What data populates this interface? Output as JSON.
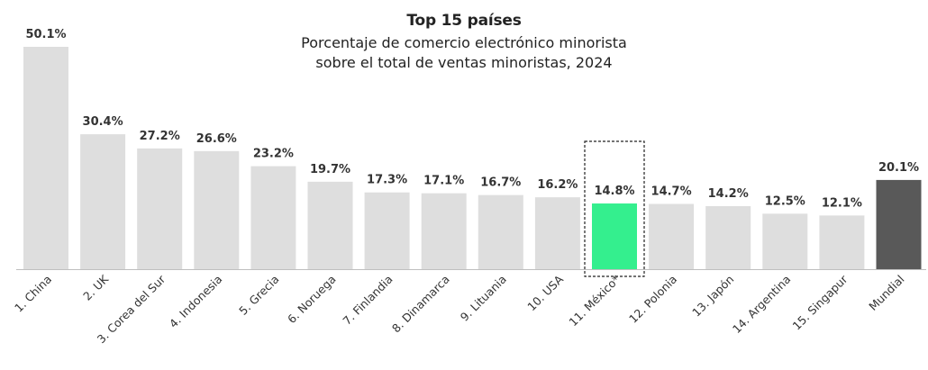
{
  "chart_data": {
    "type": "bar",
    "title": "Top 15 países",
    "subtitle_lines": [
      "Porcentaje de comercio electrónico minorista",
      "sobre el total de ventas minoristas, 2024"
    ],
    "xlabel": "",
    "ylabel": "",
    "ylim": [
      0,
      50.1
    ],
    "grid": false,
    "legend": "none",
    "value_suffix": "%",
    "categories": [
      "1. China",
      "2. UK",
      "3. Corea del Sur",
      "4. Indonesia",
      "5. Grecia",
      "6. Noruega",
      "7. Finlandia",
      "8. Dinamarca",
      "9. Lituania",
      "10. USA",
      "11. México*",
      "12. Polonia",
      "13. Japón",
      "14. Argentina",
      "15. Singapur",
      "Mundial"
    ],
    "values": [
      50.1,
      30.4,
      27.2,
      26.6,
      23.2,
      19.7,
      17.3,
      17.1,
      16.7,
      16.2,
      14.8,
      14.7,
      14.2,
      12.5,
      12.1,
      20.1
    ],
    "highlight": {
      "category": "11. México*",
      "color": "#34EF8E",
      "outline": "dashed"
    },
    "colors": {
      "default_bar": "#DEDEDE",
      "highlight_bar": "#34EF8E",
      "world_bar": "#595959",
      "axis": "#BFBFBF"
    },
    "special": {
      "world_category": "Mundial"
    }
  }
}
